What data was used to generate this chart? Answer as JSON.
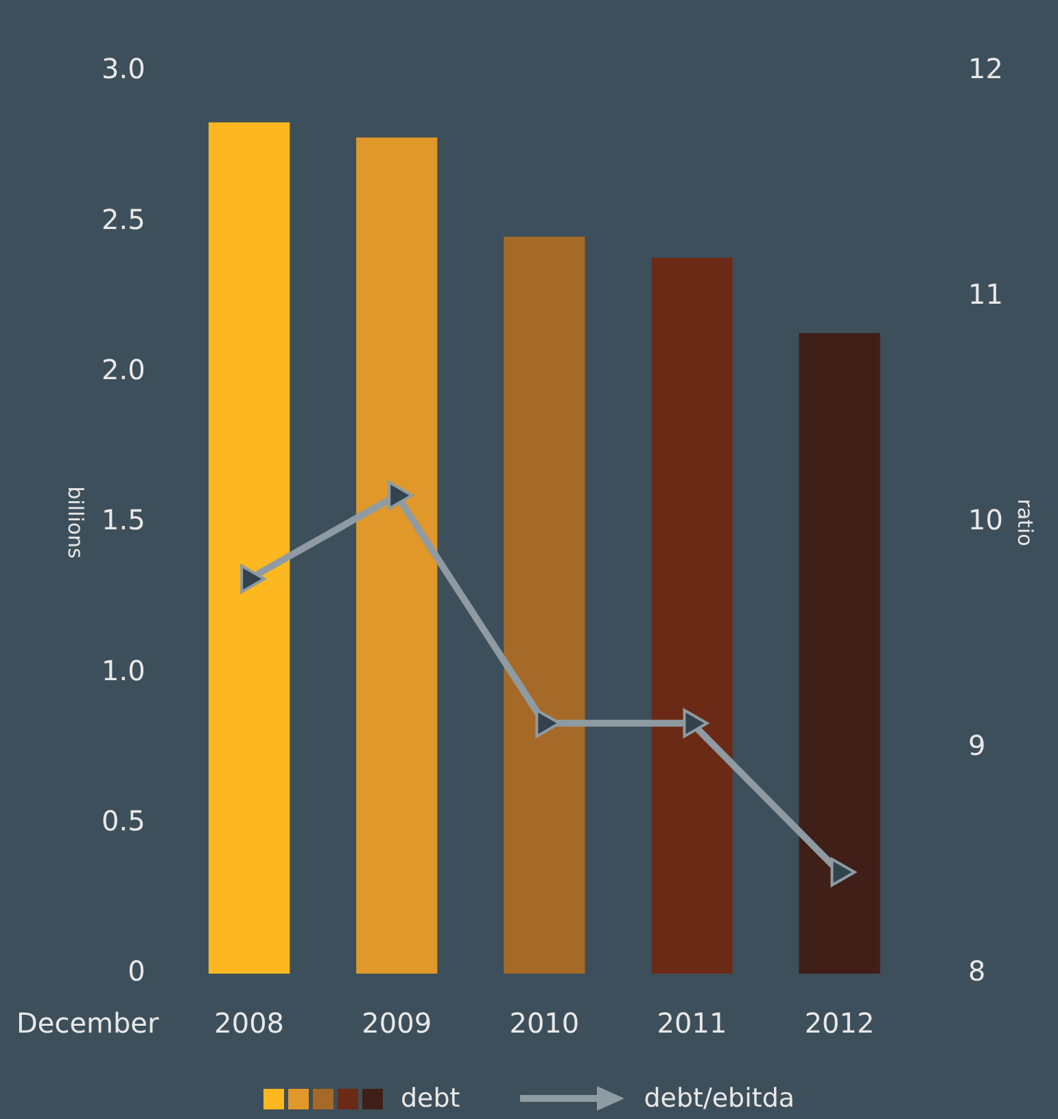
{
  "chart_data": {
    "type": "bar",
    "xlabel": "December",
    "ylabel": "billions",
    "y2label": "ratio",
    "categories": [
      "2008",
      "2009",
      "2010",
      "2011",
      "2012"
    ],
    "series": [
      {
        "name": "debt",
        "colors": [
          "#fdb71f",
          "#df9829",
          "#a56a28",
          "#6b2a15",
          "#3f1f18"
        ],
        "values": [
          2.83,
          2.78,
          2.45,
          2.38,
          2.13
        ]
      },
      {
        "name": "debt/ebitda",
        "type": "line",
        "axis": "y2",
        "color": "#8f9ba3",
        "values": [
          9.75,
          10.12,
          9.11,
          9.11,
          8.45
        ]
      }
    ],
    "ylim": [
      0,
      3
    ],
    "yticks": [
      {
        "value": 0,
        "label": "0"
      },
      0.5,
      {
        "value": 1,
        "label": "1.0"
      },
      1.5,
      {
        "value": 2,
        "label": "2.0"
      },
      2.5,
      {
        "value": 3,
        "label": "3.0"
      }
    ],
    "y2lim": [
      8,
      12
    ],
    "y2ticks": [
      8,
      9,
      10,
      11,
      12
    ],
    "grid": false,
    "legend": "bottom",
    "marker": "triangle",
    "line_style": "solid"
  }
}
